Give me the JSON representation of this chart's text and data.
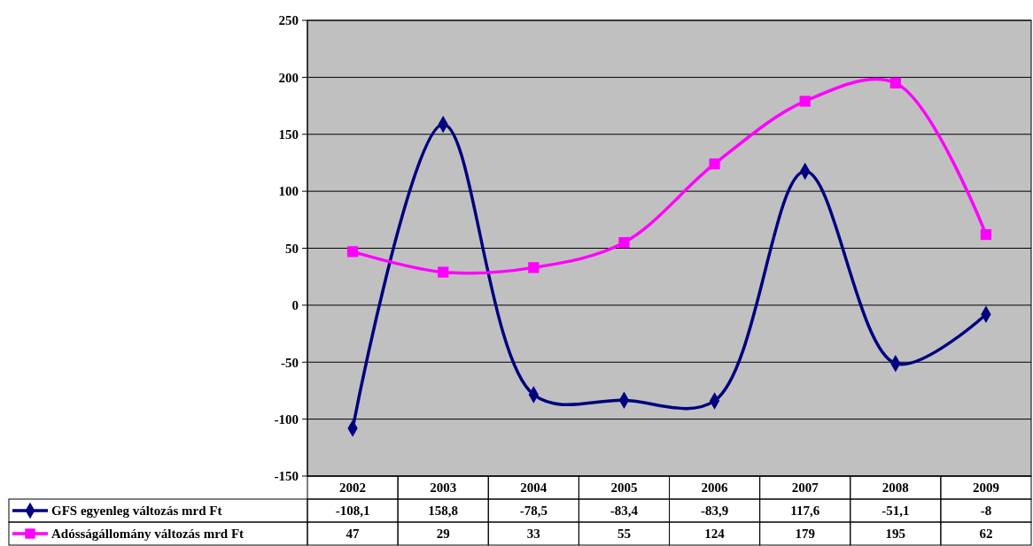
{
  "chart_data": {
    "type": "line",
    "categories": [
      "2002",
      "2003",
      "2004",
      "2005",
      "2006",
      "2007",
      "2008",
      "2009"
    ],
    "series": [
      {
        "name": "GFS egyenleg változás mrd Ft",
        "color": "#000080",
        "marker": "diamond",
        "values": [
          -108.1,
          158.8,
          -78.5,
          -83.4,
          -83.9,
          117.6,
          -51.1,
          -8
        ],
        "value_labels": [
          "-108,1",
          "158,8",
          "-78,5",
          "-83,4",
          "-83,9",
          "117,6",
          "-51,1",
          "-8"
        ]
      },
      {
        "name": "Adósságállomány változás mrd Ft",
        "color": "#ff00ff",
        "marker": "square",
        "values": [
          47,
          29,
          33,
          55,
          124,
          179,
          195,
          62
        ],
        "value_labels": [
          "47",
          "29",
          "33",
          "55",
          "124",
          "179",
          "195",
          "62"
        ]
      }
    ],
    "ylim": [
      -150,
      250
    ],
    "yticks": [
      -150,
      -100,
      -50,
      0,
      50,
      100,
      150,
      200,
      250
    ],
    "grid": "y",
    "legend": "bottom"
  }
}
